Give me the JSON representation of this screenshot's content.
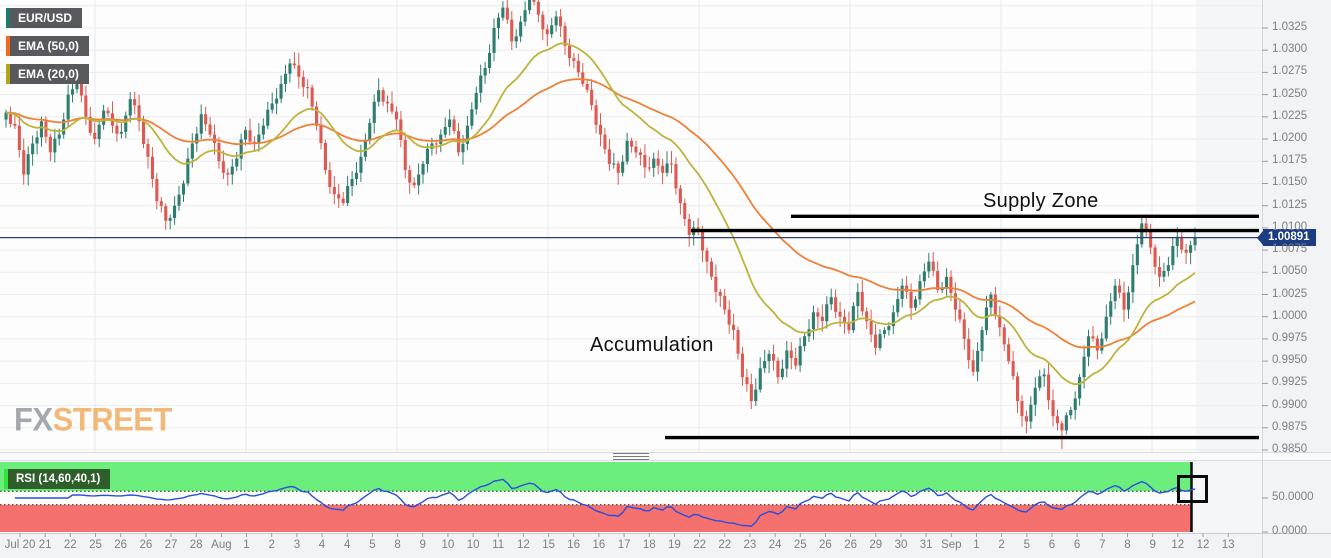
{
  "legend": {
    "symbol": "EUR/USD",
    "ema50": "EMA (50,0)",
    "ema20": "EMA (20,0)",
    "rsi": "RSI (14,60,40,1)"
  },
  "watermark": {
    "fx": "FX",
    "street": "STREET"
  },
  "price_badge": {
    "value": "1.00891"
  },
  "axes": {
    "price_ticks": [
      "1.0325",
      "1.0300",
      "1.0275",
      "1.0250",
      "1.0225",
      "1.0200",
      "1.0175",
      "1.0150",
      "1.0125",
      "1.0100",
      "1.0075",
      "1.0050",
      "1.0025",
      "1.0000",
      "0.9975",
      "0.9950",
      "0.9925",
      "0.9900",
      "0.9875",
      "0.9850"
    ],
    "rsi_ticks": [
      "50.0000",
      "0.0000"
    ]
  },
  "colors": {
    "candle_up": "#2e7d6e",
    "candle_down": "#dd5a52",
    "ema50": "#ef8038",
    "ema20": "#bdb43c",
    "price_line": "#2b3f76",
    "badge_bg": "#1b3c80",
    "rsi_line": "#2a4de0",
    "rsi_upper_band": "#6cee7d",
    "rsi_lower_band": "#f4716d",
    "zone_line": "#000000"
  },
  "chart_data": {
    "type": "candlestick",
    "symbol": "EUR/USD",
    "title": "EUR/USD 4-hour chart with EMA(50), EMA(20) and RSI(14,60,40,1)",
    "ylim": [
      0.985,
      1.0325
    ],
    "y_tick_step": 0.0025,
    "current_price": 1.00891,
    "supply_zone": {
      "label": "Supply Zone",
      "upper": 1.0113,
      "lower": 1.0097
    },
    "demand_line": 0.9864,
    "accumulation_label": "Accumulation",
    "overlays": [
      {
        "name": "EMA",
        "params": "50,0"
      },
      {
        "name": "EMA",
        "params": "20,0"
      }
    ],
    "sub_indicator": {
      "name": "RSI",
      "params": "14,60,40,1",
      "upper_level": 60,
      "lower_level": 40
    },
    "x_labels": [
      "Jul 20",
      "21",
      "22",
      "25",
      "26",
      "26",
      "27",
      "28",
      "Aug",
      "1",
      "2",
      "3",
      "4",
      "4",
      "5",
      "8",
      "9",
      "10",
      "10",
      "11",
      "12",
      "15",
      "16",
      "16",
      "17",
      "18",
      "19",
      "22",
      "22",
      "23",
      "24",
      "25",
      "26",
      "26",
      "29",
      "30",
      "31",
      "Sep",
      "1",
      "2",
      "5",
      "6",
      "6",
      "7",
      "8",
      "9",
      "12",
      "12",
      "13"
    ],
    "closes": [
      1.023,
      1.0215,
      1.016,
      1.0195,
      1.022,
      1.0185,
      1.0205,
      1.025,
      1.0262,
      1.0225,
      1.02,
      1.0232,
      1.0215,
      1.0208,
      1.0245,
      1.022,
      1.018,
      1.013,
      1.0108,
      1.0125,
      1.015,
      1.0195,
      1.0228,
      1.0205,
      1.0175,
      1.016,
      1.0178,
      1.021,
      1.0195,
      1.0215,
      1.024,
      1.0262,
      1.0285,
      1.027,
      1.0258,
      1.0215,
      1.0165,
      1.0138,
      1.0128,
      1.0155,
      1.018,
      1.0218,
      1.0255,
      1.024,
      1.0222,
      1.0165,
      1.0148,
      1.0172,
      1.0195,
      1.0205,
      1.0222,
      1.0185,
      1.0215,
      1.0252,
      1.028,
      1.0325,
      1.0348,
      1.031,
      1.0332,
      1.0358,
      1.034,
      1.0318,
      1.0338,
      1.0305,
      1.0288,
      1.0262,
      1.0238,
      1.0205,
      1.0172,
      1.0162,
      1.0198,
      1.0185,
      1.0168,
      1.0178,
      1.0162,
      1.0172,
      1.0128,
      1.0092,
      1.0098,
      1.0062,
      1.0028,
      1.0008,
      0.9985,
      0.9932,
      0.9905,
      0.9942,
      0.9958,
      0.9932,
      0.9962,
      0.9945,
      0.9978,
      1.0005,
      0.9995,
      1.0022,
      1.0,
      0.9985,
      1.0028,
      0.9995,
      0.9965,
      0.9985,
      1.0005,
      1.0035,
      1.001,
      1.004,
      1.0062,
      1.003,
      1.0045,
      1.0008,
      0.9975,
      0.9938,
      0.9985,
      1.0025,
      0.9988,
      0.995,
      0.9905,
      0.9882,
      0.992,
      0.9935,
      0.9888,
      0.9872,
      0.9895,
      0.9932,
      0.9978,
      0.9962,
      1.0,
      1.0035,
      1.0008,
      1.0058,
      1.0105,
      1.0078,
      1.0045,
      1.0058,
      1.009,
      1.0072,
      1.00891
    ]
  }
}
